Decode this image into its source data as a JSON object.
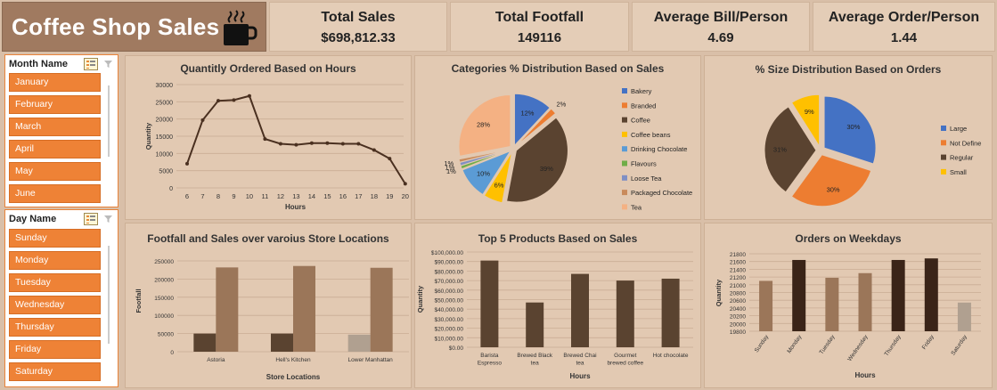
{
  "header": {
    "title": "Coffee Shop Sales",
    "kpis": [
      {
        "label": "Total Sales",
        "value": "$698,812.33"
      },
      {
        "label": "Total Footfall",
        "value": "149116"
      },
      {
        "label": "Average Bill/Person",
        "value": "4.69"
      },
      {
        "label": "Average Order/Person",
        "value": "1.44"
      }
    ]
  },
  "slicers": {
    "month": {
      "title": "Month Name",
      "items": [
        "January",
        "February",
        "March",
        "April",
        "May",
        "June"
      ]
    },
    "day": {
      "title": "Day Name",
      "items": [
        "Sunday",
        "Monday",
        "Tuesday",
        "Wednesday",
        "Thursday",
        "Friday",
        "Saturday"
      ]
    }
  },
  "colors": {
    "dark": "#5a4330",
    "medium": "#9b7659",
    "light": "#b0a090",
    "accent": "#ee8236",
    "line": "#4a3020"
  },
  "chart_data": [
    {
      "type": "line",
      "title": "Quantitly Ordered Based on Hours",
      "xlabel": "Hours",
      "ylabel": "Quantity",
      "x": [
        6,
        7,
        8,
        9,
        10,
        11,
        12,
        13,
        14,
        15,
        16,
        17,
        18,
        19,
        20
      ],
      "values": [
        7000,
        19700,
        25300,
        25500,
        26700,
        14200,
        12800,
        12500,
        13000,
        13000,
        12800,
        12800,
        11000,
        8500,
        1200
      ],
      "ylim": [
        0,
        30000
      ],
      "yticks": [
        0,
        5000,
        10000,
        15000,
        20000,
        25000,
        30000
      ]
    },
    {
      "type": "pie",
      "title": "Categories % Distribution Based on Sales",
      "legend": "right",
      "slices": [
        {
          "label": "Bakery",
          "value": 12,
          "text": "12%",
          "color": "#4472c4"
        },
        {
          "label": "Branded",
          "value": 2,
          "text": "2%",
          "color": "#ed7d31"
        },
        {
          "label": "Coffee",
          "value": 39,
          "text": "39%",
          "color": "#5a4330"
        },
        {
          "label": "Coffee beans",
          "value": 6,
          "text": "6%",
          "color": "#ffc000"
        },
        {
          "label": "Drinking Chocolate",
          "value": 10,
          "text": "10%",
          "color": "#5b9bd5"
        },
        {
          "label": "Flavours",
          "value": 1,
          "text": "1%",
          "color": "#70ad47"
        },
        {
          "label": "Loose Tea",
          "value": 1,
          "text": "1%",
          "color": "#7f8fc4"
        },
        {
          "label": "Packaged Chocolate",
          "value": 1,
          "text": "1%",
          "color": "#c98a5b"
        },
        {
          "label": "Tea",
          "value": 28,
          "text": "28%",
          "color": "#f4b183"
        }
      ]
    },
    {
      "type": "pie",
      "title": "% Size Distribution Based on Orders",
      "legend": "right",
      "slices": [
        {
          "label": "Large",
          "value": 30,
          "text": "30%",
          "color": "#4472c4"
        },
        {
          "label": "Not Define",
          "value": 30,
          "text": "30%",
          "color": "#ed7d31"
        },
        {
          "label": "Regular",
          "value": 31,
          "text": "31%",
          "color": "#5a4330"
        },
        {
          "label": "Small",
          "value": 9,
          "text": "9%",
          "color": "#ffc000"
        }
      ]
    },
    {
      "type": "bar",
      "title": "Footfall and Sales over varoius  Store Locations",
      "xlabel": "Store Locations",
      "ylabel": "Footfall",
      "categories": [
        "Astoria",
        "Hell's Kitchen",
        "Lower Manhattan"
      ],
      "series": [
        {
          "values": [
            50000,
            50000,
            47000
          ]
        },
        {
          "values": [
            232000,
            236000,
            231000
          ]
        }
      ],
      "ylim": [
        0,
        250000
      ],
      "yticks": [
        0,
        50000,
        100000,
        150000,
        200000,
        250000
      ]
    },
    {
      "type": "bar",
      "title": "Top 5 Products Based on Sales",
      "xlabel": "Hours",
      "ylabel": "Quantity",
      "categories": [
        [
          "Barista",
          "Espresso"
        ],
        [
          "Brewed Black",
          "tea"
        ],
        [
          "Brewed Chai",
          "tea"
        ],
        [
          "Gourmet",
          "brewed coffee"
        ],
        [
          "Hot chocolate"
        ]
      ],
      "values": [
        91000,
        47000,
        77000,
        70000,
        72000
      ],
      "ylim": [
        0,
        100000
      ],
      "ytick_labels": [
        "$0.00",
        "$10,000.00",
        "$20,000.00",
        "$30,000.00",
        "$40,000.00",
        "$50,000.00",
        "$60,000.00",
        "$70,000.00",
        "$80,000.00",
        "$90,000.00",
        "$100,000.00"
      ]
    },
    {
      "type": "bar",
      "title": "Orders on Weekdays",
      "xlabel": "Hours",
      "ylabel": "Quantity",
      "categories": [
        "Sunday",
        "Monday",
        "Tuesday",
        "Wednesday",
        "Thursday",
        "Friday",
        "Saturday"
      ],
      "values": [
        21100,
        21640,
        21180,
        21300,
        21640,
        21680,
        20540
      ],
      "ylim": [
        19800,
        21800
      ],
      "yticks": [
        19800,
        20000,
        20200,
        20400,
        20600,
        20800,
        21000,
        21200,
        21400,
        21600,
        21800
      ]
    }
  ]
}
